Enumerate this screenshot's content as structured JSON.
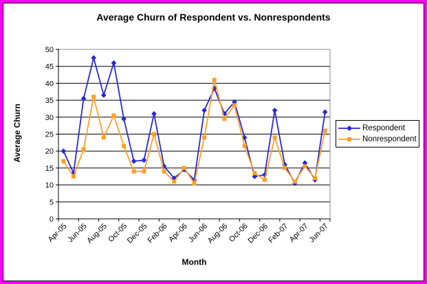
{
  "frame": {
    "border_color": "#FF00FF",
    "background": "#FFFFFF"
  },
  "chart_data": {
    "type": "line",
    "title": "Average Churn of Respondent vs. Nonrespondents",
    "xlabel": "Month",
    "ylabel": "Average Churn",
    "ylim": [
      0,
      50
    ],
    "yticks": [
      0,
      5,
      10,
      15,
      20,
      25,
      30,
      35,
      40,
      45,
      50
    ],
    "grid": "horizontal",
    "legend_position": "right",
    "categories": [
      "Apr-05",
      "May-05",
      "Jun-05",
      "Jul-05",
      "Aug-05",
      "Sep-05",
      "Oct-05",
      "Nov-05",
      "Dec-05",
      "Jan-06",
      "Feb-06",
      "Mar-06",
      "Apr-06",
      "May-06",
      "Jun-06",
      "Jul-06",
      "Aug-06",
      "Sep-06",
      "Oct-06",
      "Nov-06",
      "Dec-06",
      "Jan-07",
      "Feb-07",
      "Mar-07",
      "Apr-07",
      "May-07",
      "Jun-07"
    ],
    "xtick_labels_shown": [
      "Apr-05",
      "Jun-05",
      "Aug-05",
      "Oct-05",
      "Dec-05",
      "Feb-06",
      "Apr-06",
      "Jun-06",
      "Aug-06",
      "Oct-06",
      "Dec-06",
      "Feb-07",
      "Apr-07",
      "Jun-07"
    ],
    "series": [
      {
        "name": "Respondent",
        "color": "#2727D8",
        "marker": "diamond",
        "values": [
          20,
          13.5,
          35.5,
          47.5,
          36.5,
          46,
          29.5,
          17,
          17.3,
          31,
          15.5,
          12,
          14.5,
          11.5,
          32,
          38.5,
          31,
          34.5,
          24,
          12.5,
          13,
          32,
          16,
          10.5,
          16.5,
          11.5,
          31.5
        ]
      },
      {
        "name": "Nonrespondent",
        "color": "#FF9F24",
        "marker": "square",
        "values": [
          17,
          12.5,
          20.5,
          36,
          24,
          30.5,
          21.5,
          14,
          14,
          25,
          14,
          11,
          15,
          10.5,
          24,
          41,
          29.5,
          33.5,
          21.5,
          13.5,
          11.5,
          24,
          15,
          11,
          15.5,
          12,
          26
        ]
      }
    ]
  }
}
